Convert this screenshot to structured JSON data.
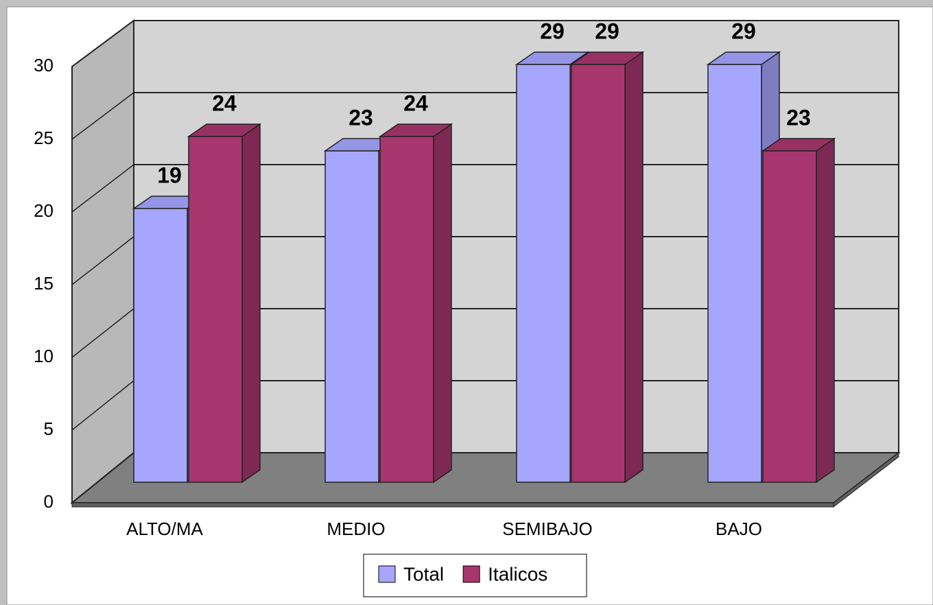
{
  "chart_data": {
    "type": "bar3d",
    "categories": [
      "ALTO/MA",
      "MEDIO",
      "SEMIBAJO",
      "BAJO"
    ],
    "series": [
      {
        "name": "Total",
        "color": "#a6a6ff",
        "values": [
          19,
          23,
          29,
          29
        ]
      },
      {
        "name": "Italicos",
        "color": "#a8366e",
        "values": [
          24,
          24,
          29,
          23
        ]
      }
    ],
    "ylim": [
      0,
      30
    ],
    "yticks": [
      0,
      5,
      10,
      15,
      20,
      25,
      30
    ],
    "grid": true,
    "legend": "bottom"
  }
}
